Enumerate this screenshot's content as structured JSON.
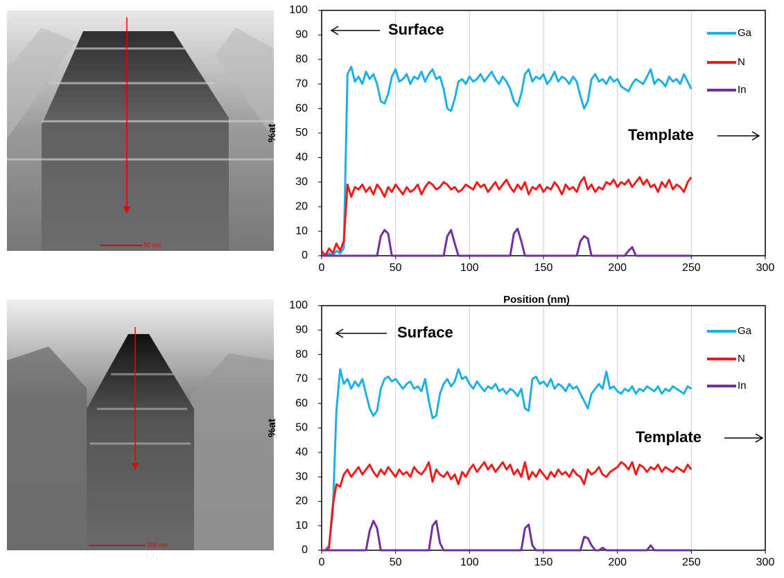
{
  "images": [
    {
      "scale_bar": "50 nm"
    },
    {
      "scale_bar": "100 nm"
    }
  ],
  "chart_data": [
    {
      "type": "line",
      "xlabel": "Position (nm)",
      "ylabel": "%at",
      "annotations": [
        "Surface",
        "Template"
      ],
      "xlim": [
        0,
        300
      ],
      "xticks": [
        0,
        50,
        100,
        150,
        200,
        250,
        300
      ],
      "ylim": [
        0,
        100
      ],
      "yticks": [
        0,
        10,
        20,
        30,
        40,
        50,
        60,
        70,
        80,
        90,
        100
      ],
      "grid": "x",
      "legend": "upper right",
      "x": [
        0,
        2.5,
        5,
        7.5,
        10,
        12.5,
        15,
        17.5,
        20,
        22.5,
        25,
        27.5,
        30,
        32.5,
        35,
        37.5,
        40,
        42.5,
        45,
        47.5,
        50,
        52.5,
        55,
        57.5,
        60,
        62.5,
        65,
        67.5,
        70,
        72.5,
        75,
        77.5,
        80,
        82.5,
        85,
        87.5,
        90,
        92.5,
        95,
        97.5,
        100,
        102.5,
        105,
        107.5,
        110,
        112.5,
        115,
        117.5,
        120,
        122.5,
        125,
        127.5,
        130,
        132.5,
        135,
        137.5,
        140,
        142.5,
        145,
        147.5,
        150,
        152.5,
        155,
        157.5,
        160,
        162.5,
        165,
        167.5,
        170,
        172.5,
        175,
        177.5,
        180,
        182.5,
        185,
        187.5,
        190,
        192.5,
        195,
        197.5,
        200,
        202.5,
        205,
        207.5,
        210,
        212.5,
        215,
        217.5,
        220,
        222.5,
        225,
        227.5,
        230,
        232.5,
        235,
        237.5,
        240,
        242.5,
        245,
        247.5,
        250
      ],
      "series": [
        {
          "name": "Ga",
          "color": "#1cb0e4",
          "values": [
            0,
            0,
            1,
            0,
            2,
            1,
            3,
            74,
            77,
            71,
            73,
            70,
            75,
            72,
            74,
            70,
            63,
            62,
            66,
            73,
            76,
            71,
            72,
            74,
            70,
            73,
            72,
            75,
            71,
            74,
            76,
            72,
            73,
            68,
            60,
            59,
            64,
            71,
            72,
            70,
            73,
            71,
            72,
            74,
            71,
            73,
            75,
            72,
            70,
            73,
            71,
            68,
            63,
            61,
            66,
            74,
            76,
            71,
            73,
            72,
            74,
            70,
            72,
            75,
            71,
            73,
            72,
            70,
            73,
            71,
            65,
            60,
            63,
            72,
            74,
            71,
            72,
            70,
            73,
            71,
            72,
            69,
            68,
            67,
            70,
            72,
            71,
            70,
            73,
            76,
            70,
            72,
            71,
            69,
            73,
            71,
            72,
            70,
            74,
            71,
            68
          ]
        },
        {
          "name": "N",
          "color": "#ee1c1c",
          "values": [
            2,
            0,
            3,
            1,
            5,
            2,
            6,
            29,
            24,
            28,
            27,
            29,
            26,
            28,
            25,
            29,
            27,
            24,
            28,
            26,
            29,
            27,
            25,
            28,
            26,
            27,
            29,
            25,
            28,
            30,
            29,
            27,
            28,
            30,
            29,
            27,
            28,
            26,
            27,
            29,
            28,
            27,
            30,
            28,
            29,
            26,
            28,
            30,
            27,
            29,
            31,
            28,
            26,
            29,
            27,
            30,
            25,
            28,
            27,
            29,
            26,
            28,
            27,
            30,
            28,
            25,
            29,
            27,
            28,
            26,
            30,
            32,
            27,
            29,
            26,
            28,
            27,
            30,
            29,
            31,
            28,
            30,
            29,
            31,
            28,
            30,
            32,
            29,
            31,
            28,
            29,
            26,
            30,
            28,
            31,
            27,
            29,
            28,
            26,
            30,
            32
          ]
        },
        {
          "name": "In",
          "color": "#7030a0",
          "values": [
            0,
            0,
            0,
            0,
            0,
            0,
            0,
            0,
            0,
            0,
            0,
            0,
            0,
            0,
            0,
            0,
            8,
            10.5,
            9,
            0,
            0,
            0,
            0,
            0,
            0,
            0,
            0,
            0,
            0,
            0,
            0,
            0,
            0,
            0,
            8,
            10.5,
            5,
            0,
            0,
            0,
            0,
            0,
            0,
            0,
            0,
            0,
            0,
            0,
            0,
            0,
            0,
            0,
            9,
            11,
            6,
            0,
            0,
            0,
            0,
            0,
            0,
            0,
            0,
            0,
            0,
            0,
            0,
            0,
            0,
            0,
            6,
            8,
            7,
            0,
            0,
            0,
            0,
            0,
            0,
            0,
            0,
            0,
            0,
            2,
            3.5,
            0,
            0,
            0,
            0,
            0,
            0,
            0,
            0,
            0,
            0,
            0,
            0,
            0,
            0,
            0,
            0
          ]
        }
      ]
    },
    {
      "type": "line",
      "ylabel": "%at",
      "annotations": [
        "Surface",
        "Template"
      ],
      "xlim": [
        0,
        300
      ],
      "xticks": [
        0,
        50,
        100,
        150,
        200,
        250,
        300
      ],
      "ylim": [
        0,
        100
      ],
      "yticks": [
        0,
        10,
        20,
        30,
        40,
        50,
        60,
        70,
        80,
        90,
        100
      ],
      "grid": "x",
      "legend": "upper right",
      "x": [
        0,
        2.5,
        5,
        7.5,
        10,
        12.5,
        15,
        17.5,
        20,
        22.5,
        25,
        27.5,
        30,
        32.5,
        35,
        37.5,
        40,
        42.5,
        45,
        47.5,
        50,
        52.5,
        55,
        57.5,
        60,
        62.5,
        65,
        67.5,
        70,
        72.5,
        75,
        77.5,
        80,
        82.5,
        85,
        87.5,
        90,
        92.5,
        95,
        97.5,
        100,
        102.5,
        105,
        107.5,
        110,
        112.5,
        115,
        117.5,
        120,
        122.5,
        125,
        127.5,
        130,
        132.5,
        135,
        137.5,
        140,
        142.5,
        145,
        147.5,
        150,
        152.5,
        155,
        157.5,
        160,
        162.5,
        165,
        167.5,
        170,
        172.5,
        175,
        177.5,
        180,
        182.5,
        185,
        187.5,
        190,
        192.5,
        195,
        197.5,
        200,
        202.5,
        205,
        207.5,
        210,
        212.5,
        215,
        217.5,
        220,
        222.5,
        225,
        227.5,
        230,
        232.5,
        235,
        237.5,
        240,
        242.5,
        245,
        247.5,
        250
      ],
      "series": [
        {
          "name": "Ga",
          "color": "#1cb0e4",
          "values": [
            0,
            0,
            2,
            15,
            57,
            74,
            68,
            70,
            66,
            69,
            67,
            70,
            64,
            58,
            55,
            57,
            66,
            70,
            71,
            69,
            70,
            68,
            66,
            68,
            69,
            66,
            67,
            65,
            70,
            61,
            54,
            55,
            64,
            68,
            70,
            67,
            69,
            74,
            70,
            71,
            68,
            66,
            69,
            67,
            65,
            67,
            66,
            68,
            65,
            66,
            64,
            66,
            65,
            63,
            66,
            58,
            57,
            70,
            71,
            68,
            69,
            67,
            70,
            66,
            68,
            67,
            65,
            68,
            66,
            67,
            64,
            61,
            58,
            64,
            66,
            68,
            66,
            73,
            66,
            67,
            65,
            64,
            66,
            65,
            67,
            64,
            66,
            65,
            67,
            66,
            65,
            67,
            64,
            66,
            65,
            67,
            66,
            65,
            64,
            67,
            66
          ]
        },
        {
          "name": "N",
          "color": "#ee1c1c",
          "values": [
            0,
            0,
            1,
            18,
            27,
            26,
            31,
            33,
            30,
            32,
            34,
            31,
            33,
            35,
            32,
            30,
            33,
            31,
            34,
            32,
            30,
            33,
            31,
            32,
            30,
            34,
            32,
            31,
            33,
            36,
            28,
            33,
            31,
            30,
            32,
            29,
            31,
            27,
            32,
            30,
            33,
            35,
            32,
            34,
            36,
            33,
            35,
            32,
            34,
            36,
            33,
            35,
            31,
            33,
            30,
            36,
            29,
            32,
            30,
            33,
            31,
            29,
            32,
            30,
            33,
            31,
            32,
            30,
            33,
            31,
            30,
            27,
            33,
            31,
            32,
            34,
            31,
            30,
            32,
            33,
            34,
            36,
            35,
            33,
            36,
            31,
            35,
            34,
            32,
            34,
            33,
            35,
            32,
            34,
            33,
            32,
            34,
            33,
            32,
            35,
            33
          ]
        },
        {
          "name": "In",
          "color": "#7030a0",
          "values": [
            0,
            0,
            0,
            0,
            0,
            0,
            0,
            0,
            0,
            0,
            0,
            0,
            0,
            8,
            12,
            9,
            0,
            0,
            0,
            0,
            0,
            0,
            0,
            0,
            0,
            0,
            0,
            0,
            0,
            0,
            10,
            12,
            3,
            0,
            0,
            0,
            0,
            0,
            0,
            0,
            0,
            0,
            0,
            0,
            0,
            0,
            0,
            0,
            0,
            0,
            0,
            0,
            0,
            0,
            0,
            9,
            10.5,
            2,
            0,
            0,
            0,
            0,
            0,
            0,
            0,
            0,
            0,
            0,
            0,
            0,
            0,
            5.5,
            5,
            2,
            0,
            0,
            1,
            0,
            0,
            0,
            0,
            0,
            0,
            0,
            0,
            0,
            0,
            0,
            0,
            2,
            0,
            0,
            0,
            0,
            0,
            0,
            0,
            0,
            0,
            0,
            0
          ]
        }
      ]
    }
  ]
}
